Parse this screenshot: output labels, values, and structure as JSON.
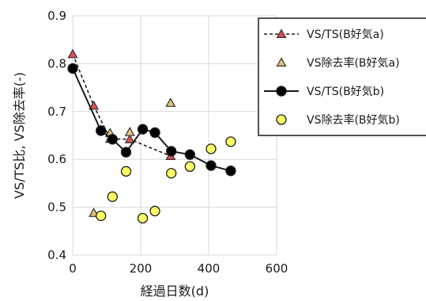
{
  "chart_data": {
    "type": "scatter",
    "xlabel": "経過日数(d)",
    "ylabel": "VS/TS比, VS除去率(-)",
    "xlim": [
      0,
      600
    ],
    "ylim": [
      0.4,
      0.9
    ],
    "x_ticks": [
      "0",
      "200",
      "400",
      "600"
    ],
    "y_ticks": [
      "0.4",
      "0.5",
      "0.6",
      "0.7",
      "0.8",
      "0.9"
    ],
    "grid": true,
    "legend_position": "right",
    "series": [
      {
        "name": "VS/TS(B好気a)",
        "marker": "triangle",
        "line": "dashed",
        "fill": "#e05050",
        "x": [
          0,
          62,
          110,
          168,
          288
        ],
        "y": [
          0.82,
          0.712,
          0.643,
          0.642,
          0.607
        ]
      },
      {
        "name": "VS除去率(B好気a)",
        "marker": "triangle",
        "line": "none",
        "fill": "#e6c27a",
        "x": [
          62,
          110,
          168,
          288
        ],
        "y": [
          0.488,
          0.655,
          0.657,
          0.718
        ]
      },
      {
        "name": "VS/TS(B好気b)",
        "marker": "circle",
        "line": "solid",
        "fill": "#000000",
        "x": [
          0,
          83,
          117,
          157,
          206,
          242,
          290,
          345,
          407,
          465
        ],
        "y": [
          0.79,
          0.66,
          0.642,
          0.615,
          0.663,
          0.656,
          0.617,
          0.61,
          0.587,
          0.576
        ]
      },
      {
        "name": "VS除去率(B好気b)",
        "marker": "circle",
        "line": "none",
        "fill": "#ffff66",
        "x": [
          83,
          117,
          157,
          206,
          242,
          290,
          345,
          407,
          465
        ],
        "y": [
          0.482,
          0.522,
          0.575,
          0.477,
          0.492,
          0.571,
          0.585,
          0.622,
          0.637
        ]
      }
    ]
  }
}
